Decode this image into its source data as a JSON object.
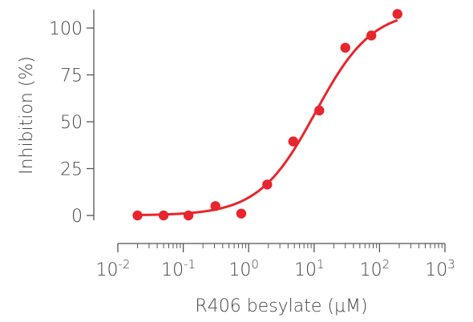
{
  "chart_data": {
    "type": "scatter",
    "xlabel": "R406 besylate (μM)",
    "ylabel": "Inhibition (%)",
    "x_scale": "log",
    "xlim": [
      0.01,
      1000
    ],
    "ylim": [
      -5,
      110
    ],
    "x_ticks": [
      {
        "base": "10",
        "exp": "-2",
        "value": 0.01
      },
      {
        "base": "10",
        "exp": "-1",
        "value": 0.1
      },
      {
        "base": "10",
        "exp": "0",
        "value": 1
      },
      {
        "base": "10",
        "exp": "1",
        "value": 10
      },
      {
        "base": "10",
        "exp": "2",
        "value": 100
      },
      {
        "base": "10",
        "exp": "3",
        "value": 1000
      }
    ],
    "y_ticks": [
      {
        "label": "0",
        "value": 0
      },
      {
        "label": "25",
        "value": 25
      },
      {
        "label": "50",
        "value": 50
      },
      {
        "label": "75",
        "value": 75
      },
      {
        "label": "100",
        "value": 100
      }
    ],
    "grid": false,
    "color": "#e8262d",
    "series": [
      {
        "points": [
          {
            "x": 0.02,
            "y": 0
          },
          {
            "x": 0.05,
            "y": 0
          },
          {
            "x": 0.12,
            "y": 0
          },
          {
            "x": 0.31,
            "y": 5
          },
          {
            "x": 0.77,
            "y": 1
          },
          {
            "x": 1.92,
            "y": 16.5
          },
          {
            "x": 4.8,
            "y": 39.5
          },
          {
            "x": 12,
            "y": 56
          },
          {
            "x": 30,
            "y": 89.5
          },
          {
            "x": 75,
            "y": 96
          },
          {
            "x": 188,
            "y": 107.5
          }
        ],
        "fit": {
          "bottom": 0,
          "top": 110,
          "ec50": 10.5,
          "hill": 1.0
        }
      }
    ]
  }
}
